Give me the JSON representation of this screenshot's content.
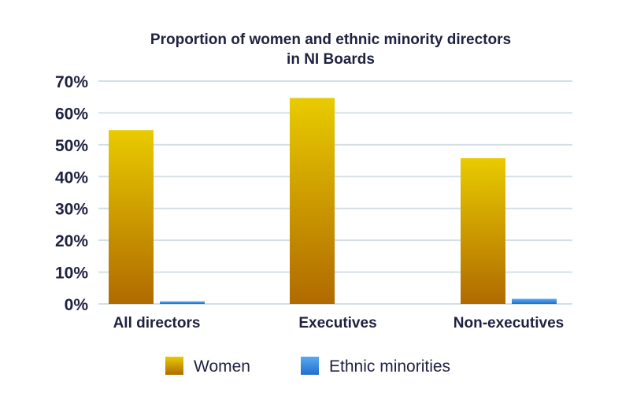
{
  "chart_data": {
    "type": "bar",
    "title": [
      "Proportion of women and ethnic minority directors",
      "in NI Boards"
    ],
    "categories": [
      "All directors",
      "Executives",
      "Non-executives"
    ],
    "series": [
      {
        "name": "Women",
        "values": [
          54.6,
          64.7,
          45.8
        ],
        "color_top": "#e8cb00",
        "color_bottom": "#b06a00"
      },
      {
        "name": "Ethnic minorities",
        "values": [
          0.8,
          0,
          1.6
        ],
        "color_top": "#5aaaf0",
        "color_bottom": "#1f6fd0"
      }
    ],
    "xlabel": "",
    "ylabel": "",
    "ylim": [
      0,
      70
    ],
    "yticks": [
      "0%",
      "10%",
      "20%",
      "30%",
      "40%",
      "50%",
      "60%",
      "70%"
    ],
    "grid": true,
    "legend_position": "bottom"
  }
}
